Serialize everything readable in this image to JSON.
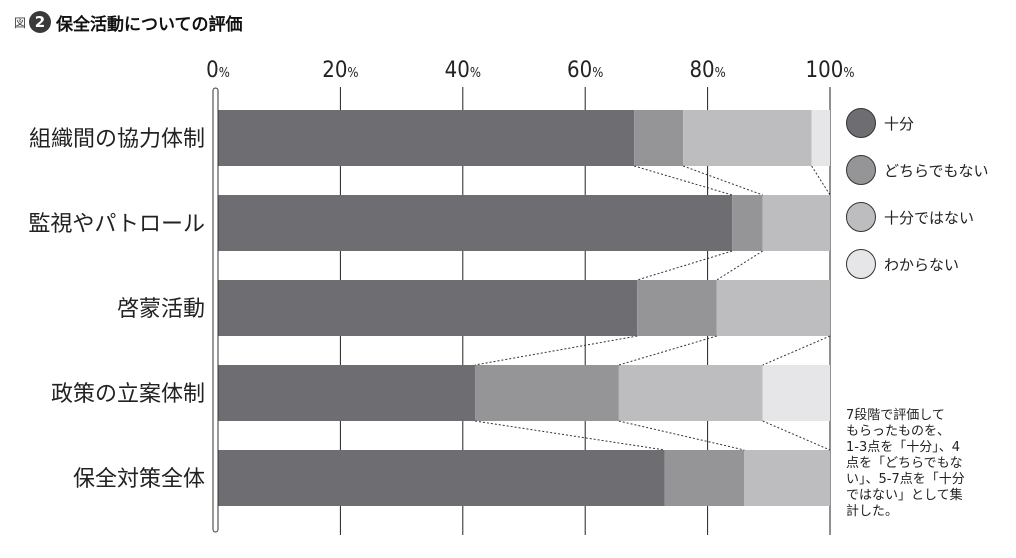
{
  "figure": {
    "prefix": "図",
    "number": "2",
    "title": "保全活動についての評価"
  },
  "chart_data": {
    "type": "bar",
    "orientation": "horizontal",
    "stacked": true,
    "title": "保全活動についての評価",
    "xlabel": "",
    "ylabel": "",
    "xlim": [
      0,
      100
    ],
    "ticks": [
      "0%",
      "20%",
      "40%",
      "60%",
      "80%",
      "100%"
    ],
    "tick_values": [
      0,
      20,
      40,
      60,
      80,
      100
    ],
    "grid": true,
    "legend_position": "right",
    "connector_lines": "dashed",
    "categories": [
      "組織間の協力体制",
      "監視やパトロール",
      "啓蒙活動",
      "政策の立案体制",
      "保全対策全体"
    ],
    "series": [
      {
        "name": "十分",
        "color": "#6e6e72",
        "values": [
          68,
          84,
          68.5,
          42,
          73
        ]
      },
      {
        "name": "どちらでもない",
        "color": "#959598",
        "values": [
          8,
          5,
          13,
          23.5,
          13
        ]
      },
      {
        "name": "十分ではない",
        "color": "#bdbdbf",
        "values": [
          21,
          11,
          18.5,
          23.5,
          14
        ]
      },
      {
        "name": "わからない",
        "color": "#e6e6e8",
        "values": [
          3,
          0,
          0,
          11,
          0
        ]
      }
    ]
  },
  "legend": [
    {
      "label": "十分",
      "color": "#6e6e72",
      "icon": "circle-swatch"
    },
    {
      "label": "どちらでもない",
      "color": "#959598",
      "icon": "circle-swatch"
    },
    {
      "label": "十分ではない",
      "color": "#bdbdbf",
      "icon": "circle-swatch"
    },
    {
      "label": "わからない",
      "color": "#e6e6e8",
      "icon": "circle-swatch"
    }
  ],
  "note_lines": [
    "7段階で評価して",
    "もらったものを、",
    "1-3点を「十分」、4",
    "点を「どちらでもな",
    "い」、5-7点を「十分",
    "ではない」として集",
    "計した。"
  ]
}
